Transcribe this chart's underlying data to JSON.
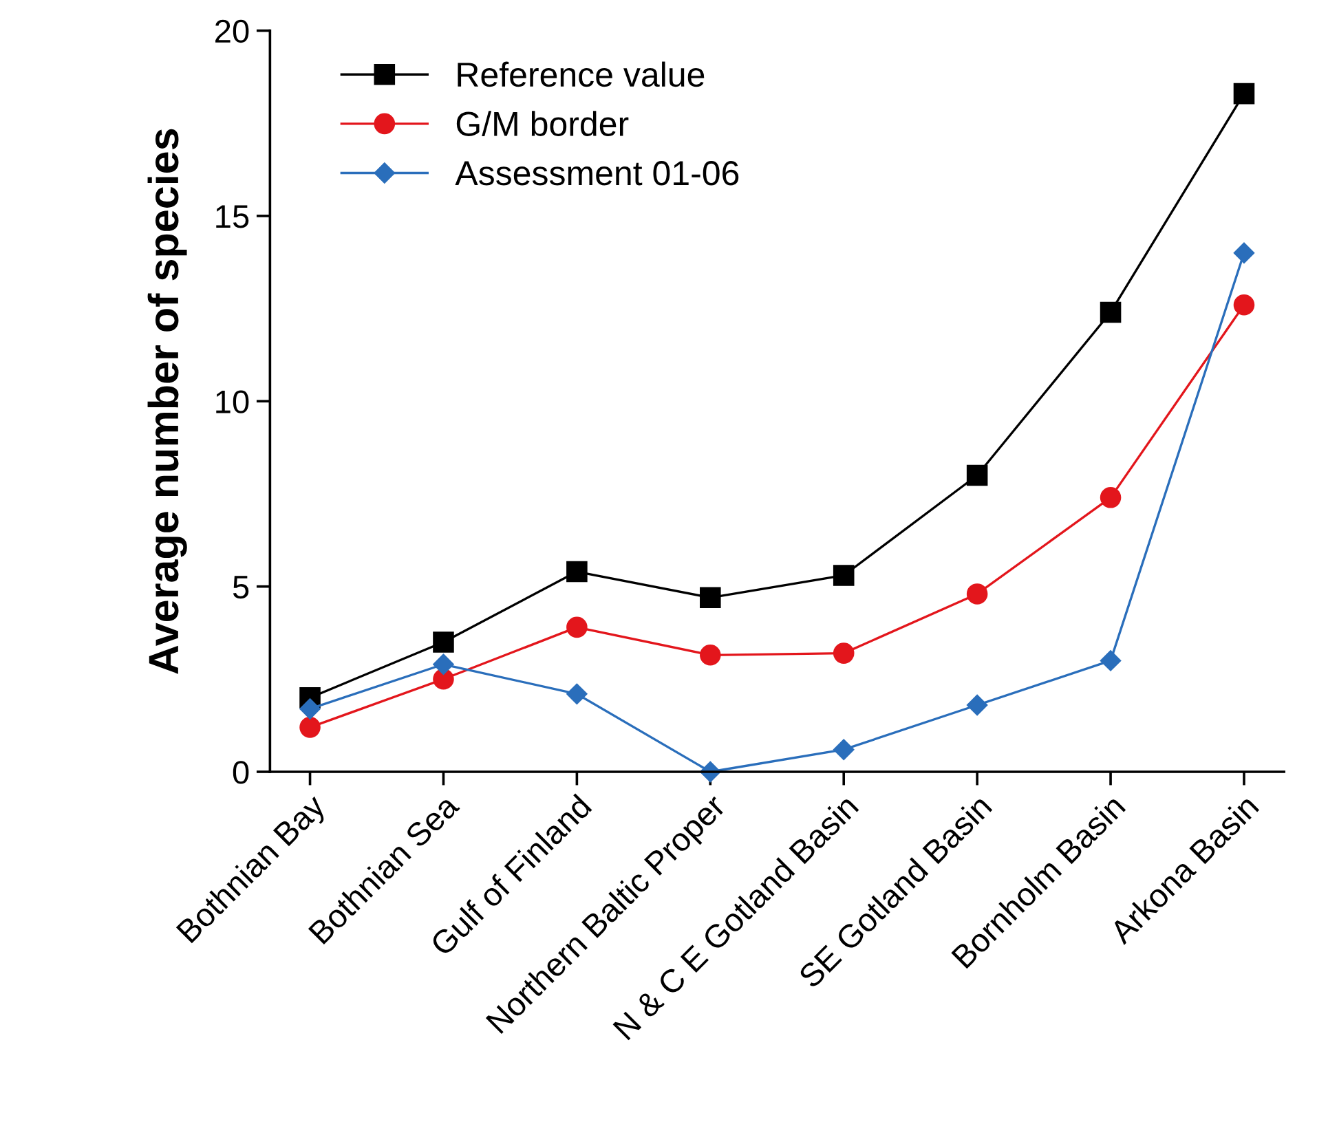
{
  "chart_data": {
    "type": "line",
    "ylabel": "Average number of species",
    "categories": [
      "Bothnian Bay",
      "Bothnian Sea",
      "Gulf of Finland",
      "Northern Baltic Proper",
      "N & C E Gotland Basin",
      "SE Gotland Basin",
      "Bornholm Basin",
      "Arkona Basin"
    ],
    "series": [
      {
        "name": "Reference value",
        "color": "#000000",
        "marker": "square",
        "values": [
          2.0,
          3.5,
          5.4,
          4.7,
          5.3,
          8.0,
          12.4,
          18.3
        ]
      },
      {
        "name": "G/M border",
        "color": "#e3161c",
        "marker": "circle",
        "values": [
          1.2,
          2.5,
          3.9,
          3.15,
          3.2,
          4.8,
          7.4,
          12.6
        ]
      },
      {
        "name": "Assessment 01-06",
        "color": "#2a6ebb",
        "marker": "diamond",
        "values": [
          1.7,
          2.9,
          2.1,
          0,
          0.6,
          1.8,
          3.0,
          14.0
        ]
      }
    ],
    "ylim": [
      0,
      20
    ],
    "yticks": [
      0,
      5,
      10,
      15,
      20
    ],
    "grid": false,
    "legend": "top left",
    "line_style": "solid"
  }
}
